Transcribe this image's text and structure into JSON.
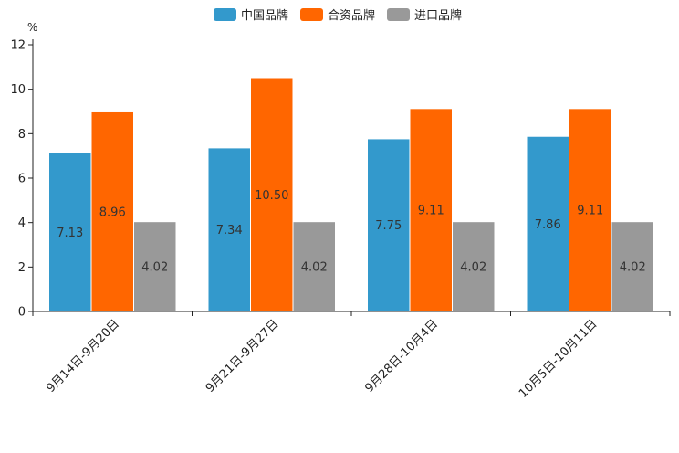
{
  "chart_data": {
    "type": "bar",
    "unit": "%",
    "categories": [
      "9月14日-9月20日",
      "9月21日-9月27日",
      "9月28日-10月4日",
      "10月5日-10月11日"
    ],
    "series": [
      {
        "name": "中国品牌",
        "color": "#3399cc",
        "values": [
          7.13,
          7.34,
          7.75,
          7.86
        ],
        "labels": [
          "7.13",
          "7.34",
          "7.75",
          "7.86"
        ]
      },
      {
        "name": "合资品牌",
        "color": "#ff6600",
        "values": [
          8.96,
          10.5,
          9.11,
          9.11
        ],
        "labels": [
          "8.96",
          "10.50",
          "9.11",
          "9.11"
        ]
      },
      {
        "name": "进口品牌",
        "color": "#999999",
        "values": [
          4.02,
          4.02,
          4.02,
          4.02
        ],
        "labels": [
          "4.02",
          "4.02",
          "4.02",
          "4.02"
        ]
      }
    ],
    "ylim": [
      0,
      12
    ],
    "yticks": [
      "0",
      "2",
      "4",
      "6",
      "8",
      "10",
      "12"
    ],
    "legend_position": "top-center",
    "grid": false
  }
}
